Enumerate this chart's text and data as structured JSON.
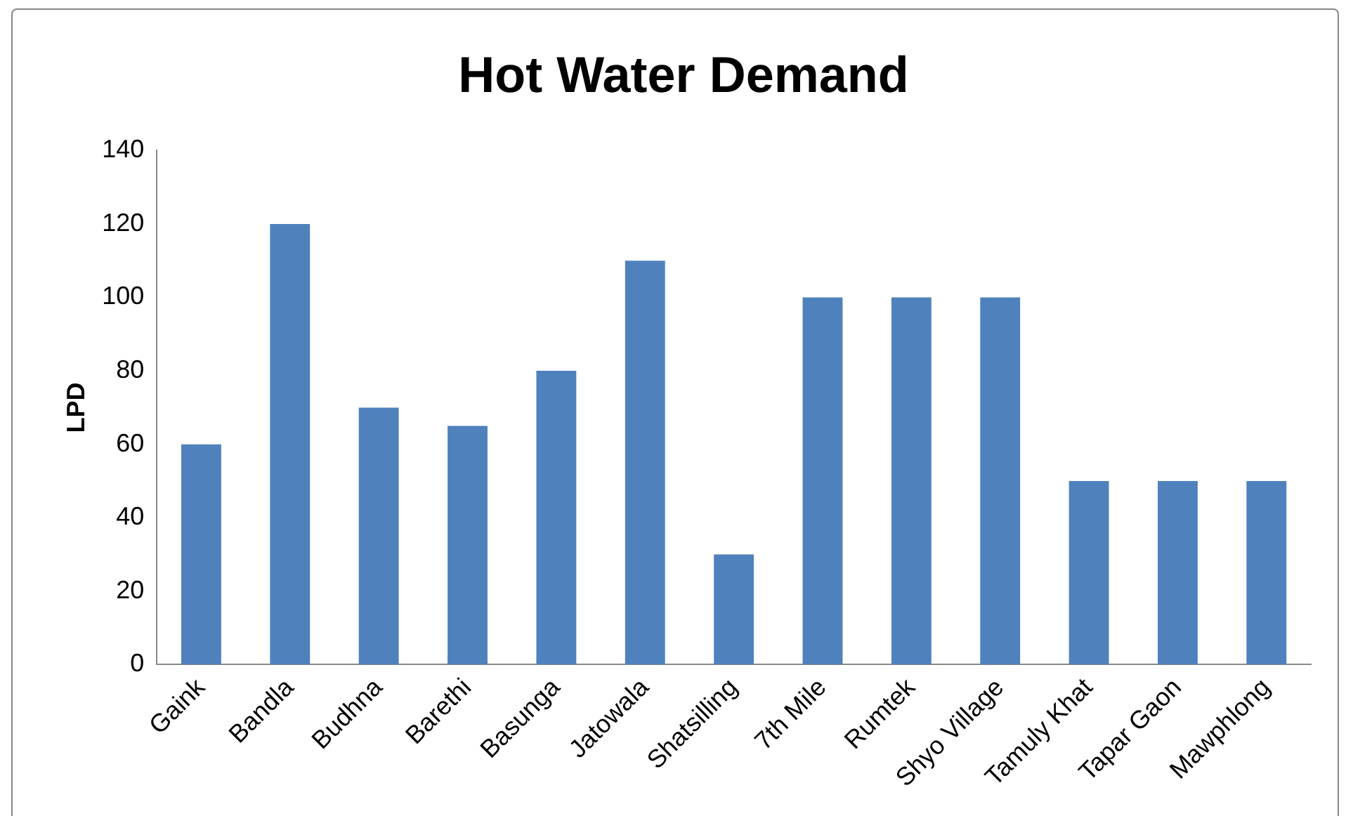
{
  "chart_data": {
    "type": "bar",
    "title": "Hot Water Demand",
    "ylabel": "LPD",
    "categories": [
      "Gaink",
      "Bandla",
      "Budhna",
      "Barethi",
      "Basunga",
      "Jatowala",
      "Shatsilling",
      "7th Mile",
      "Rumtek",
      "Shyo Village",
      "Tamuly Khat",
      "Tapar Gaon",
      "Mawphlong"
    ],
    "values": [
      60,
      120,
      70,
      65,
      80,
      110,
      30,
      100,
      100,
      100,
      50,
      50,
      50
    ],
    "color": "#4f81bd",
    "ylim": [
      0,
      140
    ],
    "yticks": [
      0,
      20,
      40,
      60,
      80,
      100,
      120,
      140
    ],
    "grid": false,
    "legend": false
  }
}
